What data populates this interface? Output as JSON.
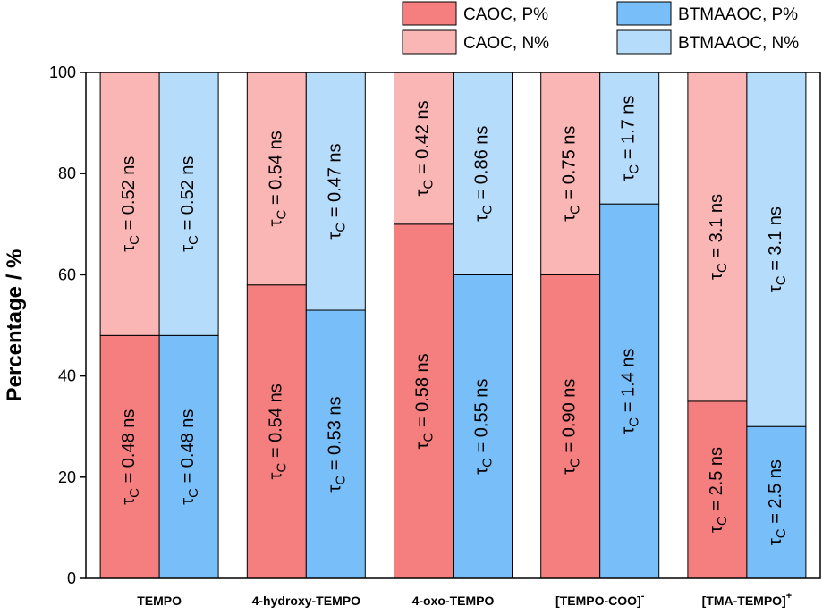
{
  "chart_data": {
    "type": "bar",
    "stacked": true,
    "ylabel": "Percentage / %",
    "xlabel": "",
    "ylim": [
      0,
      100
    ],
    "yticks": [
      0,
      20,
      40,
      60,
      80,
      100
    ],
    "grid": false,
    "legend_position": "top-right",
    "categories": [
      {
        "label": "TEMPO",
        "sup": ""
      },
      {
        "label": "4-hydroxy-TEMPO",
        "sup": ""
      },
      {
        "label": "4-oxo-TEMPO",
        "sup": ""
      },
      {
        "label": "[TEMPO-COO]",
        "sup": "-"
      },
      {
        "label": "[TMA-TEMPO]",
        "sup": "+"
      }
    ],
    "series": [
      {
        "name": "CAOC",
        "colors": {
          "P": "#f57f7f",
          "N": "#fab5b5"
        },
        "P": [
          48,
          58,
          70,
          60,
          35
        ],
        "N": [
          52,
          42,
          30,
          40,
          65
        ],
        "P_labels": [
          "τ_C = 0.48 ns",
          "τ_C = 0.54 ns",
          "τ_C = 0.58 ns",
          "τ_C = 0.90 ns",
          "τ_C = 2.5 ns"
        ],
        "N_labels": [
          "τ_C = 0.52 ns",
          "τ_C = 0.54 ns",
          "τ_C = 0.42 ns",
          "τ_C = 0.75 ns",
          "τ_C = 3.1 ns"
        ]
      },
      {
        "name": "BTMAAOC",
        "colors": {
          "P": "#78bff9",
          "N": "#b6dcfb"
        },
        "P": [
          48,
          53,
          60,
          74,
          30
        ],
        "N": [
          52,
          47,
          40,
          26,
          70
        ],
        "P_labels": [
          "τ_C = 0.48 ns",
          "τ_C = 0.53 ns",
          "τ_C = 0.55 ns",
          "τ_C = 1.4 ns",
          "τ_C = 2.5 ns"
        ],
        "N_labels": [
          "τ_C = 0.52 ns",
          "τ_C = 0.47 ns",
          "τ_C = 0.86 ns",
          "τ_C = 1.7 ns",
          "τ_C = 3.1 ns"
        ]
      }
    ],
    "legend": [
      {
        "label": "CAOC, P%",
        "color": "#f57f7f"
      },
      {
        "label": "BTMAAOC, P%",
        "color": "#78bff9"
      },
      {
        "label": "CAOC, N%",
        "color": "#fab5b5"
      },
      {
        "label": "BTMAAOC, N%",
        "color": "#b6dcfb"
      }
    ]
  }
}
